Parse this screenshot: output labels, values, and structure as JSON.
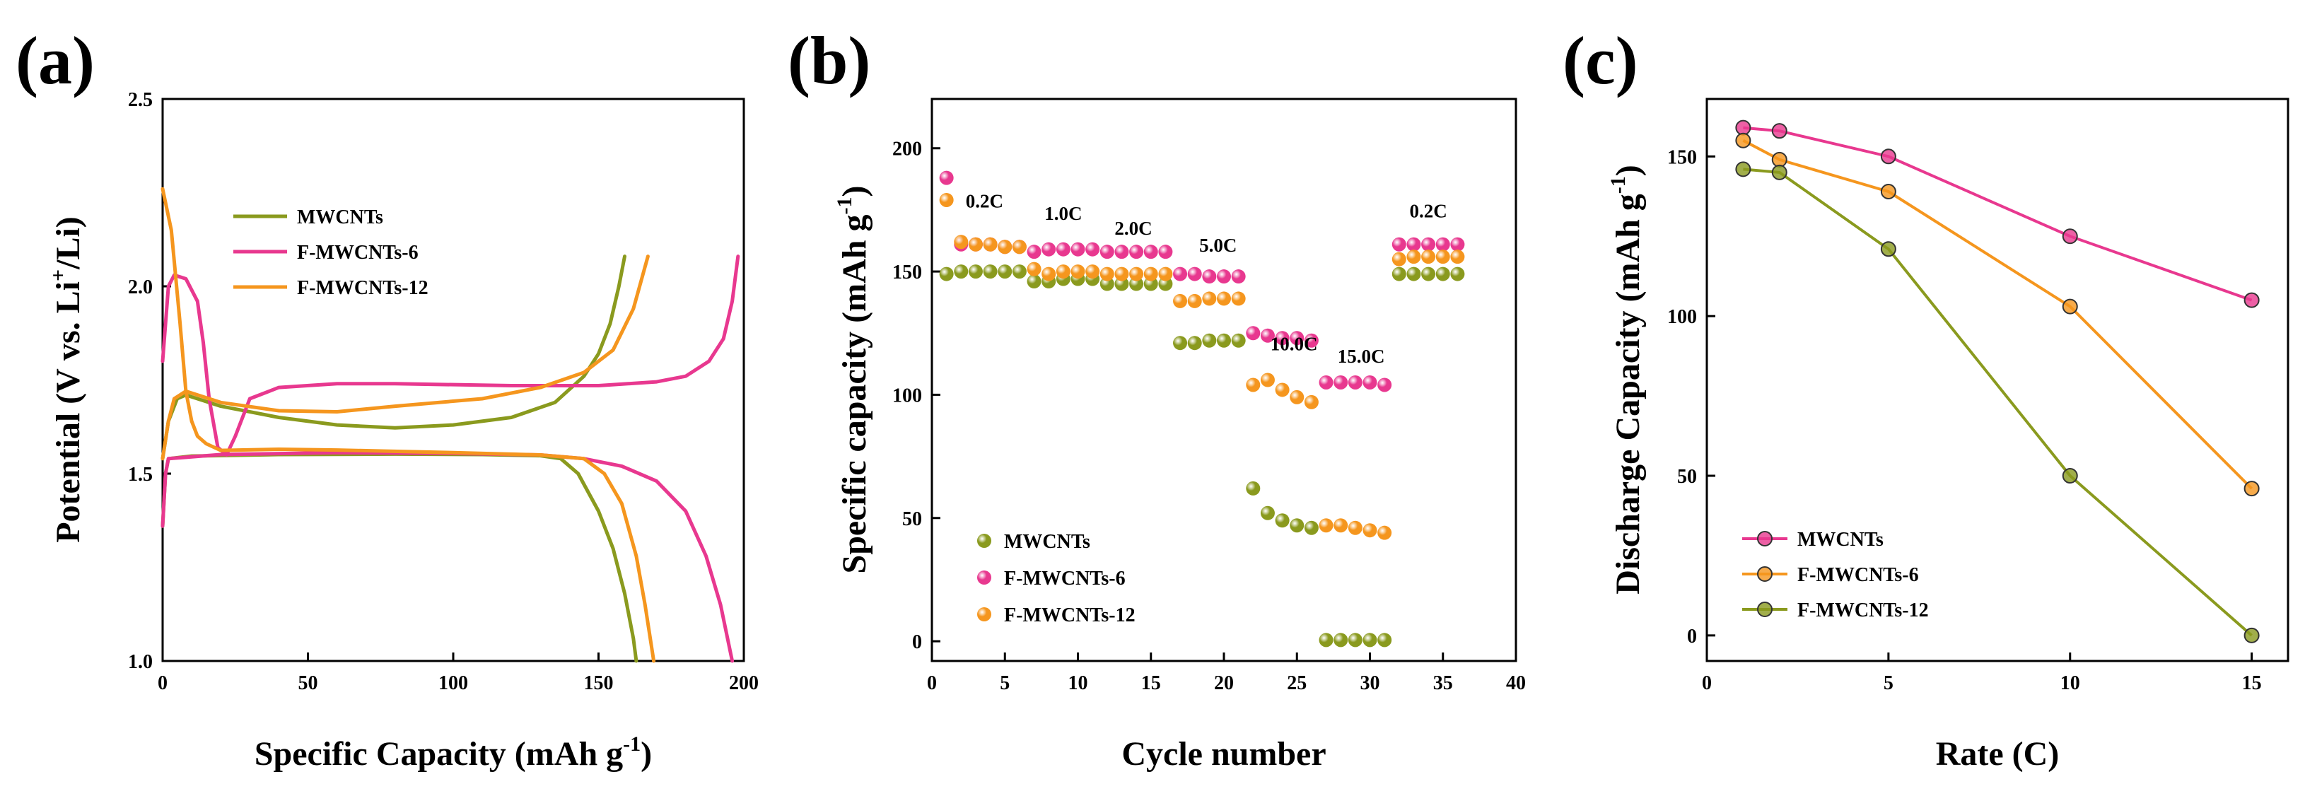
{
  "colors": {
    "mwcnts": "#8a9a1e",
    "f6": "#e8388f",
    "f12": "#f5961e",
    "axis": "#000000"
  },
  "chart_data": [
    {
      "panel": "(a)",
      "type": "line",
      "xlabel_main": "Specific Capacity (mAh g",
      "xlabel_sup": "-1",
      "xlabel_end": ")",
      "ylabel_pre": "Potential (V vs. Li",
      "ylabel_sup": "+",
      "ylabel_post": "/Li)",
      "xlim": [
        0,
        200
      ],
      "ylim": [
        1.0,
        2.5
      ],
      "xticks": [
        0,
        50,
        100,
        150,
        200
      ],
      "yticks": [
        1.0,
        1.5,
        2.0,
        2.5
      ],
      "ytick_labels": [
        "1.0",
        "1.5",
        "2.0",
        "2.5"
      ],
      "legend": [
        "MWCNTs",
        "F-MWCNTs-6",
        "F-MWCNTs-12"
      ],
      "series": [
        {
          "name": "MWCNTs",
          "color_key": "mwcnts",
          "curves": [
            [
              [
                0,
                1.36
              ],
              [
                1,
                1.5
              ],
              [
                2,
                1.54
              ],
              [
                10,
                1.547
              ],
              [
                40,
                1.551
              ],
              [
                80,
                1.552
              ],
              [
                110,
                1.551
              ],
              [
                130,
                1.548
              ],
              [
                137,
                1.54
              ],
              [
                143,
                1.5
              ],
              [
                150,
                1.4
              ],
              [
                155,
                1.3
              ],
              [
                159,
                1.18
              ],
              [
                162,
                1.06
              ],
              [
                163,
                1.0
              ]
            ],
            [
              [
                0,
                1.54
              ],
              [
                2,
                1.64
              ],
              [
                5,
                1.7
              ],
              [
                8,
                1.71
              ],
              [
                20,
                1.68
              ],
              [
                40,
                1.65
              ],
              [
                60,
                1.63
              ],
              [
                80,
                1.622
              ],
              [
                100,
                1.63
              ],
              [
                120,
                1.65
              ],
              [
                135,
                1.69
              ],
              [
                145,
                1.76
              ],
              [
                150,
                1.82
              ],
              [
                154,
                1.9
              ],
              [
                157,
                2.0
              ],
              [
                159,
                2.08
              ]
            ]
          ]
        },
        {
          "name": "F-MWCNTs-6",
          "color_key": "f6",
          "curves": [
            [
              [
                0,
                1.36
              ],
              [
                1,
                1.5
              ],
              [
                2,
                1.54
              ],
              [
                20,
                1.551
              ],
              [
                60,
                1.556
              ],
              [
                100,
                1.554
              ],
              [
                130,
                1.55
              ],
              [
                145,
                1.54
              ],
              [
                158,
                1.52
              ],
              [
                170,
                1.48
              ],
              [
                180,
                1.4
              ],
              [
                187,
                1.28
              ],
              [
                192,
                1.15
              ],
              [
                196,
                1.0
              ]
            ],
            [
              [
                0,
                1.8
              ],
              [
                1,
                1.9
              ],
              [
                2,
                2.0
              ],
              [
                4,
                2.03
              ],
              [
                8,
                2.02
              ],
              [
                12,
                1.96
              ],
              [
                14,
                1.85
              ],
              [
                16,
                1.7
              ],
              [
                19,
                1.57
              ],
              [
                22,
                1.55
              ],
              [
                25,
                1.6
              ],
              [
                30,
                1.7
              ],
              [
                40,
                1.73
              ],
              [
                60,
                1.74
              ],
              [
                80,
                1.74
              ],
              [
                120,
                1.735
              ],
              [
                150,
                1.735
              ],
              [
                170,
                1.745
              ],
              [
                180,
                1.76
              ],
              [
                188,
                1.8
              ],
              [
                193,
                1.86
              ],
              [
                196,
                1.96
              ],
              [
                198,
                2.08
              ]
            ]
          ]
        },
        {
          "name": "F-MWCNTs-12",
          "color_key": "f12",
          "curves": [
            [
              [
                0,
                2.26
              ],
              [
                3,
                2.15
              ],
              [
                6,
                1.9
              ],
              [
                8,
                1.72
              ],
              [
                10,
                1.64
              ],
              [
                12,
                1.6
              ],
              [
                15,
                1.58
              ],
              [
                20,
                1.562
              ],
              [
                40,
                1.565
              ],
              [
                60,
                1.563
              ],
              [
                100,
                1.556
              ],
              [
                130,
                1.55
              ],
              [
                145,
                1.54
              ],
              [
                152,
                1.5
              ],
              [
                158,
                1.42
              ],
              [
                163,
                1.28
              ],
              [
                166,
                1.15
              ],
              [
                169,
                1.0
              ]
            ],
            [
              [
                0,
                1.54
              ],
              [
                2,
                1.64
              ],
              [
                4,
                1.7
              ],
              [
                8,
                1.72
              ],
              [
                20,
                1.69
              ],
              [
                40,
                1.668
              ],
              [
                60,
                1.665
              ],
              [
                80,
                1.68
              ],
              [
                110,
                1.7
              ],
              [
                130,
                1.73
              ],
              [
                145,
                1.77
              ],
              [
                155,
                1.83
              ],
              [
                162,
                1.94
              ],
              [
                167,
                2.08
              ]
            ]
          ]
        }
      ]
    },
    {
      "panel": "(b)",
      "type": "scatter",
      "xlabel": "Cycle number",
      "ylabel_main": "Specific capacity (mAh g",
      "ylabel_sup": "-1",
      "ylabel_end": ")",
      "xlim": [
        0,
        40
      ],
      "ylim": [
        -8,
        220
      ],
      "xticks": [
        0,
        5,
        10,
        15,
        20,
        25,
        30,
        35,
        40
      ],
      "yticks": [
        0,
        50,
        100,
        150,
        200
      ],
      "legend": [
        "MWCNTs",
        "F-MWCNTs-6",
        "F-MWCNTs-12"
      ],
      "annotations": [
        {
          "text": "0.2C",
          "x": 3.6,
          "y": 176
        },
        {
          "text": "1.0C",
          "x": 9,
          "y": 171
        },
        {
          "text": "2.0C",
          "x": 13.8,
          "y": 165
        },
        {
          "text": "5.0C",
          "x": 19.6,
          "y": 158
        },
        {
          "text": "10.0C",
          "x": 24.8,
          "y": 118
        },
        {
          "text": "15.0C",
          "x": 29.4,
          "y": 113
        },
        {
          "text": "0.2C",
          "x": 34,
          "y": 172
        }
      ],
      "series": [
        {
          "name": "MWCNTs",
          "color_key": "mwcnts",
          "x": [
            1,
            2,
            3,
            4,
            5,
            6,
            7,
            8,
            9,
            10,
            11,
            12,
            13,
            14,
            15,
            16,
            17,
            18,
            19,
            20,
            21,
            22,
            23,
            24,
            25,
            26,
            27,
            28,
            29,
            30,
            31,
            32,
            33,
            34,
            35,
            36
          ],
          "y": [
            149,
            150,
            150,
            150,
            150,
            150,
            146,
            146,
            147,
            147,
            147,
            145,
            145,
            145,
            145,
            145,
            121,
            121,
            122,
            122,
            122,
            62,
            52,
            49,
            47,
            46,
            0.5,
            0.5,
            0.5,
            0.5,
            0.5,
            149,
            149,
            149,
            149,
            149
          ]
        },
        {
          "name": "F-MWCNTs-6",
          "color_key": "f6",
          "x": [
            1,
            2,
            3,
            4,
            5,
            6,
            7,
            8,
            9,
            10,
            11,
            12,
            13,
            14,
            15,
            16,
            17,
            18,
            19,
            20,
            21,
            22,
            23,
            24,
            25,
            26,
            27,
            28,
            29,
            30,
            31,
            32,
            33,
            34,
            35,
            36
          ],
          "y": [
            188,
            161,
            161,
            161,
            160,
            160,
            158,
            159,
            159,
            159,
            159,
            158,
            158,
            158,
            158,
            158,
            149,
            149,
            148,
            148,
            148,
            125,
            124,
            123,
            123,
            122,
            105,
            105,
            105,
            105,
            104,
            161,
            161,
            161,
            161,
            161
          ]
        },
        {
          "name": "F-MWCNTs-12",
          "color_key": "f12",
          "x": [
            1,
            2,
            3,
            4,
            5,
            6,
            7,
            8,
            9,
            10,
            11,
            12,
            13,
            14,
            15,
            16,
            17,
            18,
            19,
            20,
            21,
            22,
            23,
            24,
            25,
            26,
            27,
            28,
            29,
            30,
            31,
            32,
            33,
            34,
            35,
            36
          ],
          "y": [
            179,
            162,
            161,
            161,
            160,
            160,
            151,
            149,
            150,
            150,
            150,
            149,
            149,
            149,
            149,
            149,
            138,
            138,
            139,
            139,
            139,
            104,
            106,
            102,
            99,
            97,
            47,
            47,
            46,
            45,
            44,
            155,
            156,
            156,
            156,
            156
          ]
        }
      ]
    },
    {
      "panel": "(c)",
      "type": "line",
      "xlabel": "Rate (C)",
      "ylabel_main": "Discharge Capacity (mAh g",
      "ylabel_sup": "-1",
      "ylabel_end": ")",
      "xlim": [
        0,
        16
      ],
      "ylim": [
        -8,
        168
      ],
      "xticks": [
        0,
        5,
        10,
        15
      ],
      "yticks": [
        0,
        50,
        100,
        150
      ],
      "legend": [
        "MWCNTs",
        "F-MWCNTs-6",
        "F-MWCNTs-12"
      ],
      "series": [
        {
          "name": "MWCNTs",
          "color_key": "f6",
          "x": [
            1,
            2,
            5,
            10,
            15
          ],
          "y": [
            159,
            158,
            150,
            125,
            105
          ]
        },
        {
          "name": "F-MWCNTs-6",
          "color_key": "f12",
          "x": [
            1,
            2,
            5,
            10,
            15
          ],
          "y": [
            155,
            149,
            139,
            103,
            46
          ]
        },
        {
          "name": "F-MWCNTs-12",
          "color_key": "mwcnts",
          "x": [
            1,
            2,
            5,
            10,
            15
          ],
          "y": [
            146,
            145,
            121,
            50,
            0
          ]
        }
      ]
    }
  ]
}
